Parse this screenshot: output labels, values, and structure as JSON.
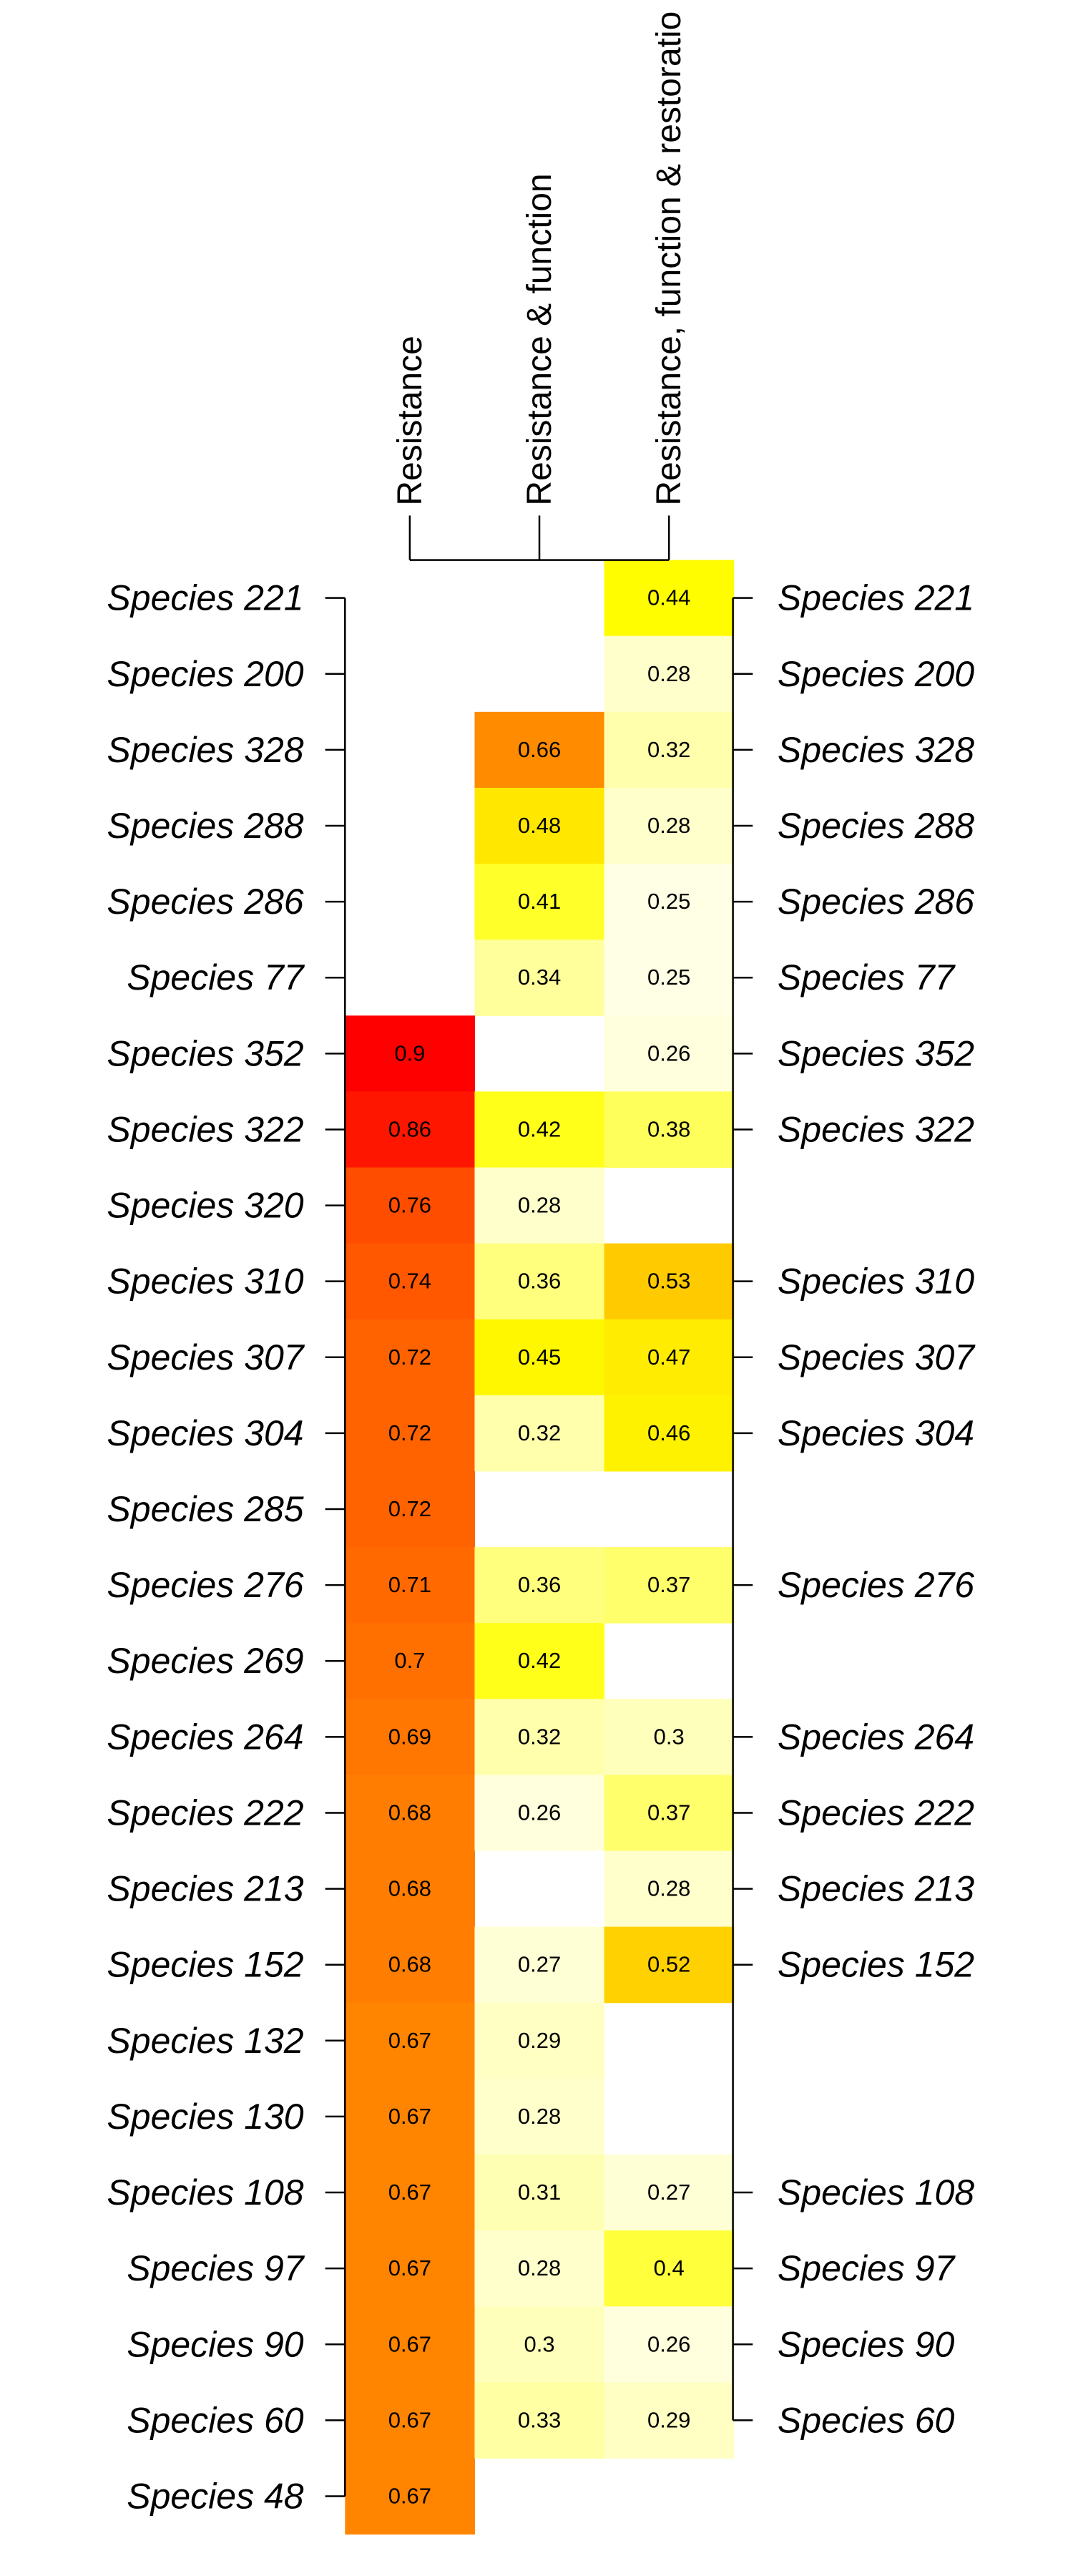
{
  "chart_data": {
    "type": "heatmap",
    "title": "",
    "xlabel": "",
    "ylabel": "",
    "columns": [
      "Resistance",
      "Resistance & function",
      "Resistance, function & restoratio"
    ],
    "rows": [
      "Species 221",
      "Species 200",
      "Species 328",
      "Species 288",
      "Species 286",
      "Species 77",
      "Species 352",
      "Species 322",
      "Species 320",
      "Species 310",
      "Species 307",
      "Species 304",
      "Species 285",
      "Species 276",
      "Species 269",
      "Species 264",
      "Species 222",
      "Species 213",
      "Species 152",
      "Species 132",
      "Species 130",
      "Species 108",
      "Species 97",
      "Species 90",
      "Species 60",
      "Species 48"
    ],
    "values": [
      [
        null,
        null,
        0.44
      ],
      [
        null,
        null,
        0.28
      ],
      [
        null,
        0.66,
        0.32
      ],
      [
        null,
        0.48,
        0.28
      ],
      [
        null,
        0.41,
        0.25
      ],
      [
        null,
        0.34,
        0.25
      ],
      [
        0.9,
        null,
        0.26
      ],
      [
        0.86,
        0.42,
        0.38
      ],
      [
        0.76,
        0.28,
        null
      ],
      [
        0.74,
        0.36,
        0.53
      ],
      [
        0.72,
        0.45,
        0.47
      ],
      [
        0.72,
        0.32,
        0.46
      ],
      [
        0.72,
        null,
        null
      ],
      [
        0.71,
        0.36,
        0.37
      ],
      [
        0.7,
        0.42,
        null
      ],
      [
        0.69,
        0.32,
        0.3
      ],
      [
        0.68,
        0.26,
        0.37
      ],
      [
        0.68,
        null,
        0.28
      ],
      [
        0.68,
        0.27,
        0.52
      ],
      [
        0.67,
        0.29,
        null
      ],
      [
        0.67,
        0.28,
        null
      ],
      [
        0.67,
        0.31,
        0.27
      ],
      [
        0.67,
        0.28,
        0.4
      ],
      [
        0.67,
        0.3,
        0.26
      ],
      [
        0.67,
        0.33,
        0.29
      ],
      [
        0.67,
        null,
        null
      ]
    ],
    "right_labels": [
      "Species 221",
      "Species 200",
      "Species 328",
      "Species 288",
      "Species 286",
      "Species 77",
      "Species 352",
      "Species 322",
      "",
      "Species 310",
      "Species 307",
      "Species 304",
      "",
      "Species 276",
      "",
      "Species 264",
      "Species 222",
      "Species 213",
      "Species 152",
      "",
      "",
      "Species 108",
      "Species 97",
      "Species 90",
      "Species 60",
      ""
    ],
    "colorscale": [
      "#ffffe5",
      "#ffff99",
      "#ffff00",
      "#ffcc00",
      "#ffa500",
      "#ff6600",
      "#ff3300",
      "#ff0000"
    ]
  }
}
